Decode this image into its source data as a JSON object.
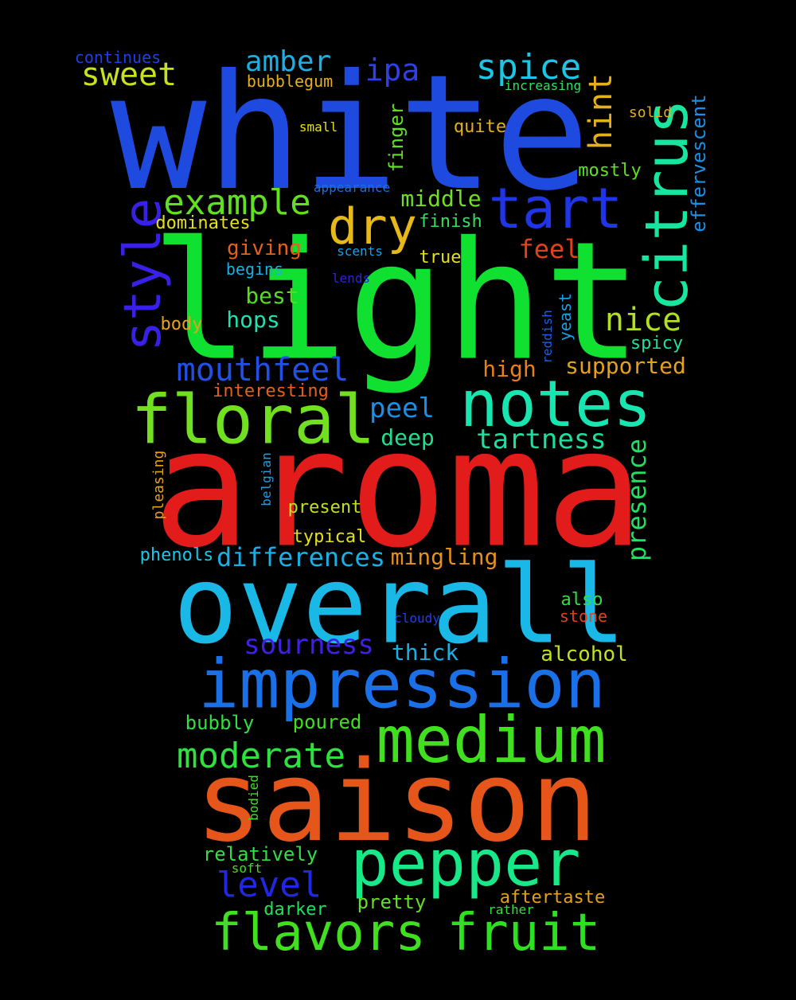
{
  "words": [
    {
      "id": "white",
      "text": "white",
      "color": "#1e4ae0"
    },
    {
      "id": "light",
      "text": "light",
      "color": "#10e030"
    },
    {
      "id": "aroma",
      "text": "aroma",
      "color": "#e21b1b"
    },
    {
      "id": "overall",
      "text": "overall",
      "color": "#19b8e6"
    },
    {
      "id": "saison",
      "text": "saison",
      "color": "#e6561b"
    },
    {
      "id": "impression",
      "text": "impression",
      "color": "#1a70e6"
    },
    {
      "id": "medium",
      "text": "medium",
      "color": "#40e020"
    },
    {
      "id": "pepper",
      "text": "pepper",
      "color": "#18e888"
    },
    {
      "id": "notes",
      "text": "notes",
      "color": "#18e6b0"
    },
    {
      "id": "floral",
      "text": "floral",
      "color": "#70e020"
    },
    {
      "id": "fruit",
      "text": "fruit",
      "color": "#2ee020"
    },
    {
      "id": "flavors",
      "text": "flavors",
      "color": "#40e020"
    },
    {
      "id": "citrus",
      "text": "citrus",
      "color": "#18e6a0"
    },
    {
      "id": "style",
      "text": "style",
      "color": "#3820e6"
    },
    {
      "id": "tart",
      "text": "tart",
      "color": "#2035e6"
    },
    {
      "id": "dry",
      "text": "dry",
      "color": "#e6b81a"
    },
    {
      "id": "example",
      "text": "example",
      "color": "#60e020"
    },
    {
      "id": "mouthfeel",
      "text": "mouthfeel",
      "color": "#2050e6"
    },
    {
      "id": "moderate",
      "text": "moderate",
      "color": "#30e040"
    },
    {
      "id": "level",
      "text": "level",
      "color": "#2028e6"
    },
    {
      "id": "sourness",
      "text": "sourness",
      "color": "#4020e6"
    },
    {
      "id": "tartness",
      "text": "tartness",
      "color": "#18e0a0"
    },
    {
      "id": "spice",
      "text": "spice",
      "color": "#18c8e6"
    },
    {
      "id": "amber",
      "text": "amber",
      "color": "#19b0e6"
    },
    {
      "id": "sweet",
      "text": "sweet",
      "color": "#c8e020"
    },
    {
      "id": "ipa",
      "text": "ipa",
      "color": "#3040e6"
    },
    {
      "id": "nice",
      "text": "nice",
      "color": "#b0e020"
    },
    {
      "id": "hint",
      "text": "hint",
      "color": "#e6b01a"
    },
    {
      "id": "differences",
      "text": "differences",
      "color": "#18b0e6"
    },
    {
      "id": "presence",
      "text": "presence",
      "color": "#20e060"
    },
    {
      "id": "peel",
      "text": "peel",
      "color": "#1890e6"
    },
    {
      "id": "feel",
      "text": "feel",
      "color": "#e6401a"
    },
    {
      "id": "middle",
      "text": "middle",
      "color": "#70e020"
    },
    {
      "id": "supported",
      "text": "supported",
      "color": "#e6a01a"
    },
    {
      "id": "high",
      "text": "high",
      "color": "#e6801a"
    },
    {
      "id": "mingling",
      "text": "mingling",
      "color": "#e6901a"
    },
    {
      "id": "deep",
      "text": "deep",
      "color": "#20e090"
    },
    {
      "id": "hops",
      "text": "hops",
      "color": "#20e0b0"
    },
    {
      "id": "best",
      "text": "best",
      "color": "#50e020"
    },
    {
      "id": "thick",
      "text": "thick",
      "color": "#18b0e6"
    },
    {
      "id": "alcohol",
      "text": "alcohol",
      "color": "#c0e020"
    },
    {
      "id": "giving",
      "text": "giving",
      "color": "#e6601a"
    },
    {
      "id": "effervescent",
      "text": "effervescent",
      "color": "#1890e6"
    },
    {
      "id": "bubbly",
      "text": "bubbly",
      "color": "#30e040"
    },
    {
      "id": "poured",
      "text": "poured",
      "color": "#40e020"
    },
    {
      "id": "relatively",
      "text": "relatively",
      "color": "#30e040"
    },
    {
      "id": "pretty",
      "text": "pretty",
      "color": "#60e020"
    },
    {
      "id": "aftertaste",
      "text": "aftertaste",
      "color": "#e6a01a"
    },
    {
      "id": "darker",
      "text": "darker",
      "color": "#20e060"
    },
    {
      "id": "interesting",
      "text": "interesting",
      "color": "#e6601a"
    },
    {
      "id": "phenols",
      "text": "phenols",
      "color": "#18c8e6"
    },
    {
      "id": "typical",
      "text": "typical",
      "color": "#e6e01a"
    },
    {
      "id": "present",
      "text": "present",
      "color": "#c0e020"
    },
    {
      "id": "also",
      "text": "also",
      "color": "#30e040"
    },
    {
      "id": "stone",
      "text": "stone",
      "color": "#e6401a"
    },
    {
      "id": "mostly",
      "text": "mostly",
      "color": "#60e020"
    },
    {
      "id": "finish",
      "text": "finish",
      "color": "#30e060"
    },
    {
      "id": "true",
      "text": "true",
      "color": "#e6e01a"
    },
    {
      "id": "quite",
      "text": "quite",
      "color": "#e6b01a"
    },
    {
      "id": "body",
      "text": "body",
      "color": "#e6a01a"
    },
    {
      "id": "spicy",
      "text": "spicy",
      "color": "#20e0a0"
    },
    {
      "id": "dominates",
      "text": "dominates",
      "color": "#e6e01a"
    },
    {
      "id": "begins",
      "text": "begins",
      "color": "#18b0e6"
    },
    {
      "id": "bubblegum",
      "text": "bubblegum",
      "color": "#e6b01a"
    },
    {
      "id": "continues",
      "text": "continues",
      "color": "#2040e6"
    },
    {
      "id": "increasing",
      "text": "increasing",
      "color": "#30e060"
    },
    {
      "id": "appearance",
      "text": "appearance",
      "color": "#1870e6"
    },
    {
      "id": "small",
      "text": "small",
      "color": "#e6e01a"
    },
    {
      "id": "solid",
      "text": "solid",
      "color": "#e6b01a"
    },
    {
      "id": "scents",
      "text": "scents",
      "color": "#18a0e6"
    },
    {
      "id": "lends",
      "text": "lends",
      "color": "#3020e6"
    },
    {
      "id": "finger",
      "text": "finger",
      "color": "#60e020"
    },
    {
      "id": "yeast",
      "text": "yeast",
      "color": "#18a0e6"
    },
    {
      "id": "reddish",
      "text": "reddish",
      "color": "#1860e6"
    },
    {
      "id": "pleasing",
      "text": "pleasing",
      "color": "#e6a01a"
    },
    {
      "id": "belgian",
      "text": "belgian",
      "color": "#18a0e6"
    },
    {
      "id": "cloudy",
      "text": "cloudy",
      "color": "#2040e6"
    },
    {
      "id": "bodied",
      "text": "bodied",
      "color": "#40e020"
    },
    {
      "id": "soft",
      "text": "soft",
      "color": "#40e020"
    },
    {
      "id": "rather",
      "text": "rather",
      "color": "#30e040"
    }
  ]
}
